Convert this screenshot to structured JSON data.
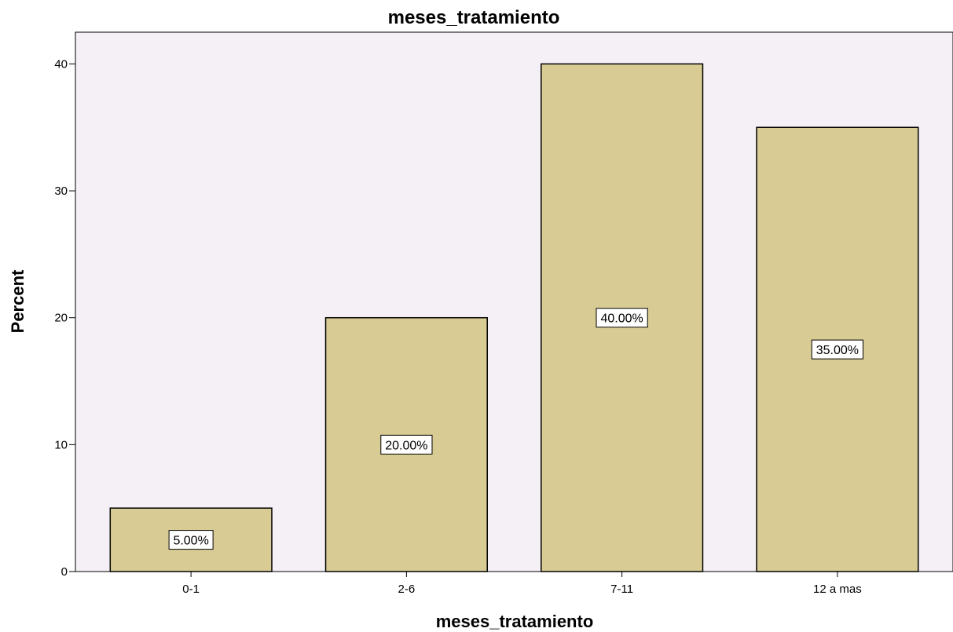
{
  "chart_data": {
    "type": "bar",
    "title": "meses_tratamiento",
    "xlabel": "meses_tratamiento",
    "ylabel": "Percent",
    "categories": [
      "0-1",
      "2-6",
      "7-11",
      "12 a mas"
    ],
    "values": [
      5,
      20,
      40,
      35
    ],
    "data_labels": [
      "5.00%",
      "20.00%",
      "40.00%",
      "35.00%"
    ],
    "y_ticks": [
      0,
      10,
      20,
      30,
      40
    ],
    "ylim": [
      0,
      42.5
    ],
    "grid": false,
    "legend": "none",
    "colors": {
      "plot_background": "#F5F0F5",
      "bar_fill": "#D8CB94",
      "bar_stroke": "#000000",
      "axis": "#000000"
    }
  }
}
